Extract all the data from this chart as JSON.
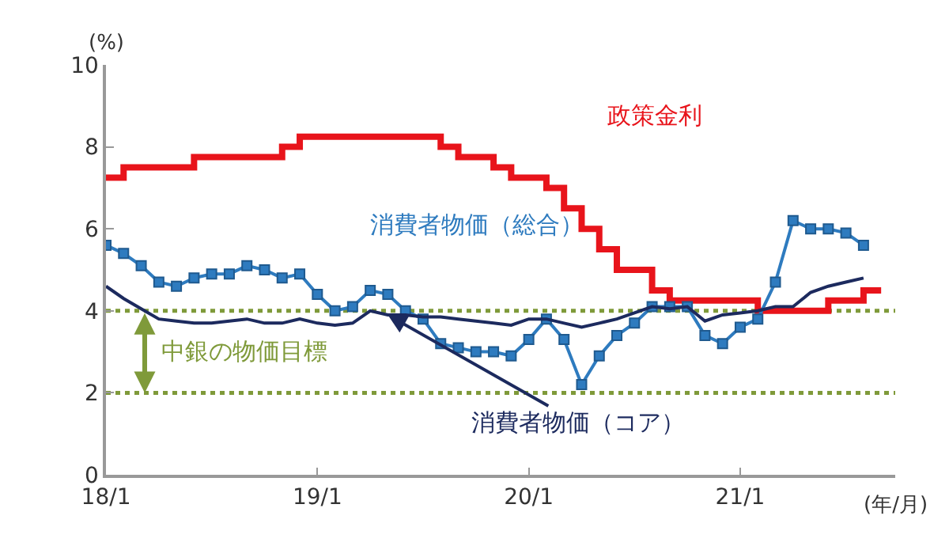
{
  "chart_data": {
    "type": "line",
    "xlabel": "(年/月)",
    "ylabel": "(%)",
    "categories": [
      "18/1",
      null,
      null,
      null,
      null,
      null,
      null,
      null,
      null,
      null,
      null,
      null,
      "19/1",
      null,
      null,
      null,
      null,
      null,
      null,
      null,
      null,
      null,
      null,
      null,
      "20/1",
      null,
      null,
      null,
      null,
      null,
      null,
      null,
      null,
      null,
      null,
      null,
      "21/1",
      null,
      null,
      null,
      null,
      null,
      null,
      null,
      null
    ],
    "ylim": [
      0,
      10
    ],
    "yticks": [
      0,
      2,
      4,
      6,
      8,
      10
    ],
    "series": [
      {
        "name": "政策金利",
        "type": "step",
        "color": "#e8141b",
        "values": [
          7.25,
          7.5,
          7.5,
          7.5,
          7.5,
          7.75,
          7.75,
          7.75,
          7.75,
          7.75,
          8.0,
          8.25,
          8.25,
          8.25,
          8.25,
          8.25,
          8.25,
          8.25,
          8.25,
          8.0,
          7.75,
          7.75,
          7.5,
          7.25,
          7.25,
          7.0,
          6.5,
          6.0,
          5.5,
          5.0,
          5.0,
          4.5,
          4.25,
          4.25,
          4.25,
          4.25,
          4.25,
          4.0,
          4.0,
          4.0,
          4.0,
          4.25,
          4.25,
          4.5,
          4.5
        ]
      },
      {
        "name": "消費者物価（総合）",
        "color": "#2e7bbf",
        "marker": "square",
        "values": [
          5.6,
          5.4,
          5.1,
          4.7,
          4.6,
          4.8,
          4.9,
          4.9,
          5.1,
          5.0,
          4.8,
          4.9,
          4.4,
          4.0,
          4.1,
          4.5,
          4.4,
          4.0,
          3.8,
          3.2,
          3.1,
          3.0,
          3.0,
          2.9,
          3.3,
          3.8,
          3.3,
          2.2,
          2.9,
          3.4,
          3.7,
          4.1,
          4.1,
          4.1,
          3.4,
          3.2,
          3.6,
          3.8,
          4.7,
          6.2,
          6.0,
          6.0,
          5.9,
          5.6,
          null
        ]
      },
      {
        "name": "消費者物価（コア）",
        "color": "#1c2a5e",
        "values": [
          4.6,
          4.3,
          4.05,
          3.8,
          3.75,
          3.7,
          3.7,
          3.75,
          3.8,
          3.7,
          3.7,
          3.8,
          3.7,
          3.65,
          3.7,
          4.0,
          3.9,
          3.9,
          3.85,
          3.85,
          3.8,
          3.75,
          3.7,
          3.65,
          3.8,
          3.8,
          3.7,
          3.6,
          3.7,
          3.8,
          3.95,
          4.1,
          4.05,
          4.1,
          3.75,
          3.9,
          3.95,
          4.0,
          4.1,
          4.1,
          4.45,
          4.6,
          4.7,
          4.8,
          null
        ]
      }
    ],
    "ref_lines": [
      {
        "axis": "y",
        "value": 4,
        "color": "#7f9a3a",
        "line_style": "dotted"
      },
      {
        "axis": "y",
        "value": 2,
        "color": "#7f9a3a",
        "line_style": "dotted"
      }
    ],
    "annotations": [
      "中銀の物価目標"
    ]
  }
}
